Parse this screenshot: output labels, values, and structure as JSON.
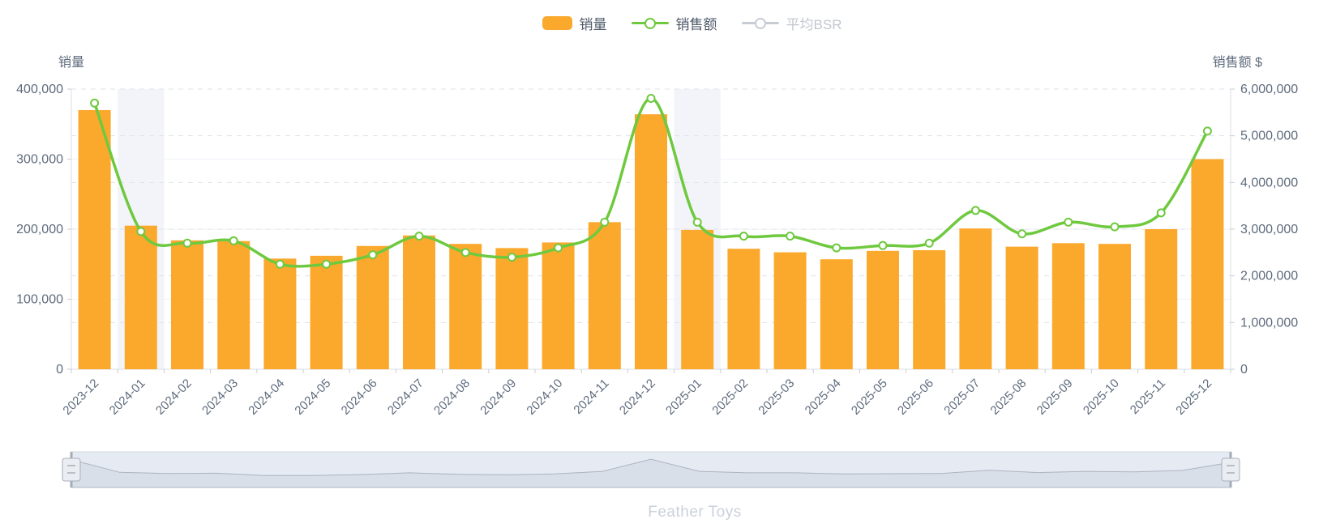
{
  "legend": {
    "items": [
      {
        "label": "销量",
        "type": "bar",
        "color": "#FBA92D",
        "active": true
      },
      {
        "label": "销售额",
        "type": "line",
        "color": "#6FC93F",
        "active": true
      },
      {
        "label": "平均BSR",
        "type": "line",
        "color": "#C8CDD4",
        "active": false
      }
    ]
  },
  "footer": {
    "brand": "Feather Toys"
  },
  "colors": {
    "bar": "#FBA92D",
    "line": "#6FC93F",
    "highlight_band": "#F2F4F9",
    "grid_dashed": "#DDE2EA",
    "grid_solid": "#F0F2F7",
    "axis_line": "#D9DEE6",
    "axis_tick": "#C6CCD6",
    "label": "#5E6B7D",
    "slider_track": "#E6EAF2",
    "slider_area": "#D9DFE9",
    "slider_area_line": "#ABB4C1",
    "slider_handle": "#A3ACB7",
    "brand_text": "#CBD1DB"
  },
  "chart_data": {
    "type": "bar+line",
    "categories": [
      "2023-12",
      "2024-01",
      "2024-02",
      "2024-03",
      "2024-04",
      "2024-05",
      "2024-06",
      "2024-07",
      "2024-08",
      "2024-09",
      "2024-10",
      "2024-11",
      "2024-12",
      "2025-01",
      "2025-02",
      "2025-03",
      "2025-04",
      "2025-05",
      "2025-06",
      "2025-07",
      "2025-08",
      "2025-09",
      "2025-10",
      "2025-11",
      "2025-12"
    ],
    "series": [
      {
        "name": "销量",
        "type": "bar",
        "yaxis": "left",
        "color": "#FBA92D",
        "values": [
          370000,
          205000,
          184000,
          183000,
          158000,
          162000,
          176000,
          191000,
          179000,
          173000,
          181000,
          210000,
          364000,
          199000,
          172000,
          167000,
          157000,
          169000,
          170000,
          201000,
          175000,
          180000,
          179000,
          200000,
          300000
        ]
      },
      {
        "name": "销售额",
        "type": "line",
        "yaxis": "right",
        "color": "#6FC93F",
        "smooth": true,
        "values": [
          5700000,
          2950000,
          2700000,
          2750000,
          2250000,
          2250000,
          2450000,
          2850000,
          2500000,
          2400000,
          2600000,
          3150000,
          5800000,
          3150000,
          2850000,
          2850000,
          2600000,
          2650000,
          2700000,
          3400000,
          2900000,
          3150000,
          3050000,
          3350000,
          5100000
        ]
      },
      {
        "name": "平均BSR",
        "type": "line",
        "yaxis": "none",
        "color": "#C8CDD4",
        "disabled": true,
        "values": []
      }
    ],
    "left_axis": {
      "title": "销量",
      "min": 0,
      "max": 400000,
      "ticks": [
        "400,000",
        "300,000",
        "200,000",
        "100,000",
        "0"
      ]
    },
    "right_axis": {
      "title": "销售额 $",
      "min": 0,
      "max": 6000000,
      "ticks": [
        "6,000,000",
        "5,000,000",
        "4,000,000",
        "3,000,000",
        "2,000,000",
        "1,000,000",
        "0"
      ]
    },
    "highlighted_categories": [
      "2024-01",
      "2025-01"
    ],
    "legend_position": "top-center",
    "grid": {
      "horizontal_dashed": true
    },
    "datazoom": {
      "present": true,
      "range_full": true
    }
  }
}
